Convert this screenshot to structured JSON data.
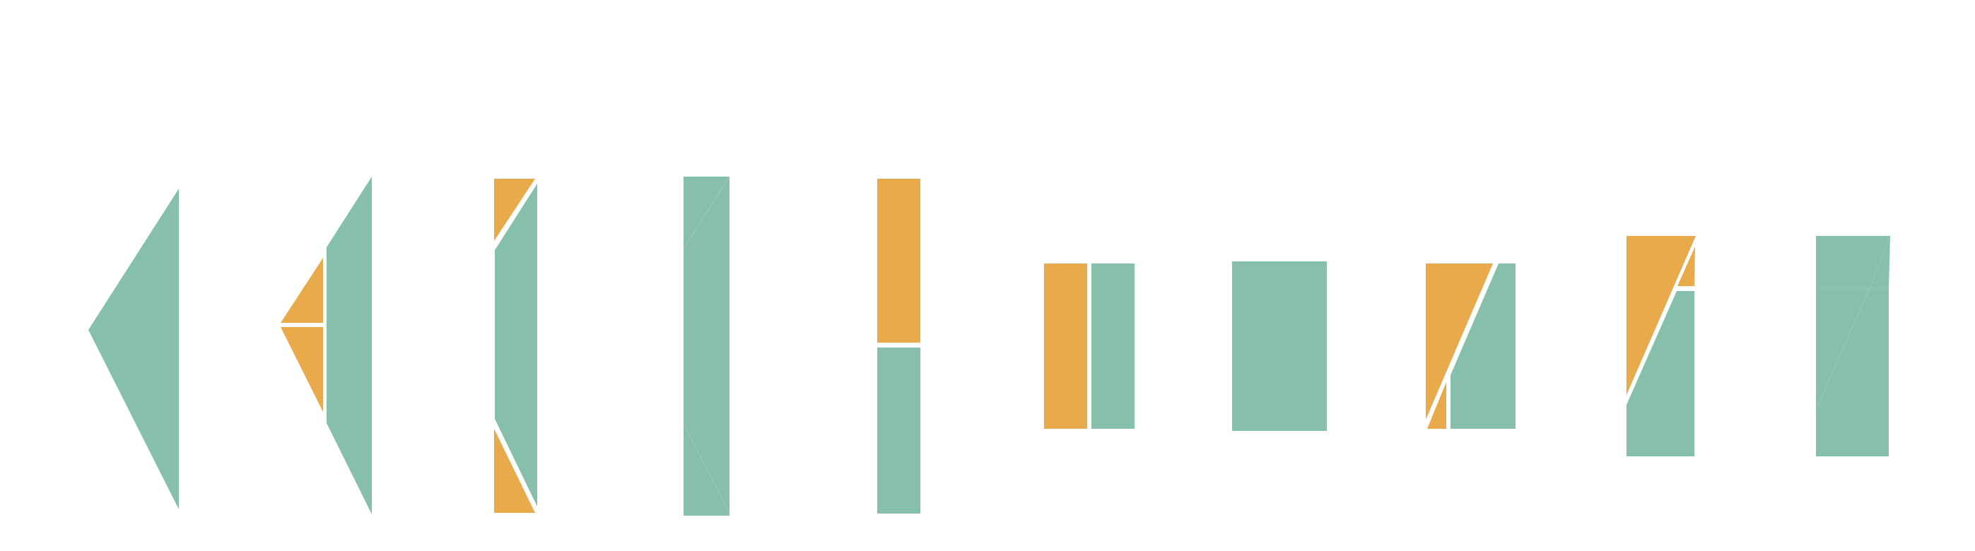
{
  "colors": {
    "background": "#ffffff",
    "green": "#87C0AA",
    "orange": "#E9AA4B",
    "separator": "#ffffff"
  },
  "figures": [
    {
      "name": "step-1",
      "pieces": [
        "green"
      ]
    },
    {
      "name": "step-2",
      "pieces": [
        "orange",
        "orange",
        "green"
      ]
    },
    {
      "name": "step-3",
      "pieces": [
        "orange",
        "green",
        "orange"
      ]
    },
    {
      "name": "step-4",
      "pieces": [
        "green",
        "green",
        "green"
      ]
    },
    {
      "name": "step-5",
      "pieces": [
        "orange",
        "green"
      ]
    },
    {
      "name": "step-6",
      "pieces": [
        "orange",
        "green"
      ]
    },
    {
      "name": "step-7",
      "pieces": [
        "green"
      ]
    },
    {
      "name": "step-8",
      "pieces": [
        "orange",
        "orange",
        "green"
      ]
    },
    {
      "name": "step-9",
      "pieces": [
        "orange",
        "orange",
        "green"
      ]
    },
    {
      "name": "step-10",
      "pieces": [
        "green"
      ]
    }
  ]
}
